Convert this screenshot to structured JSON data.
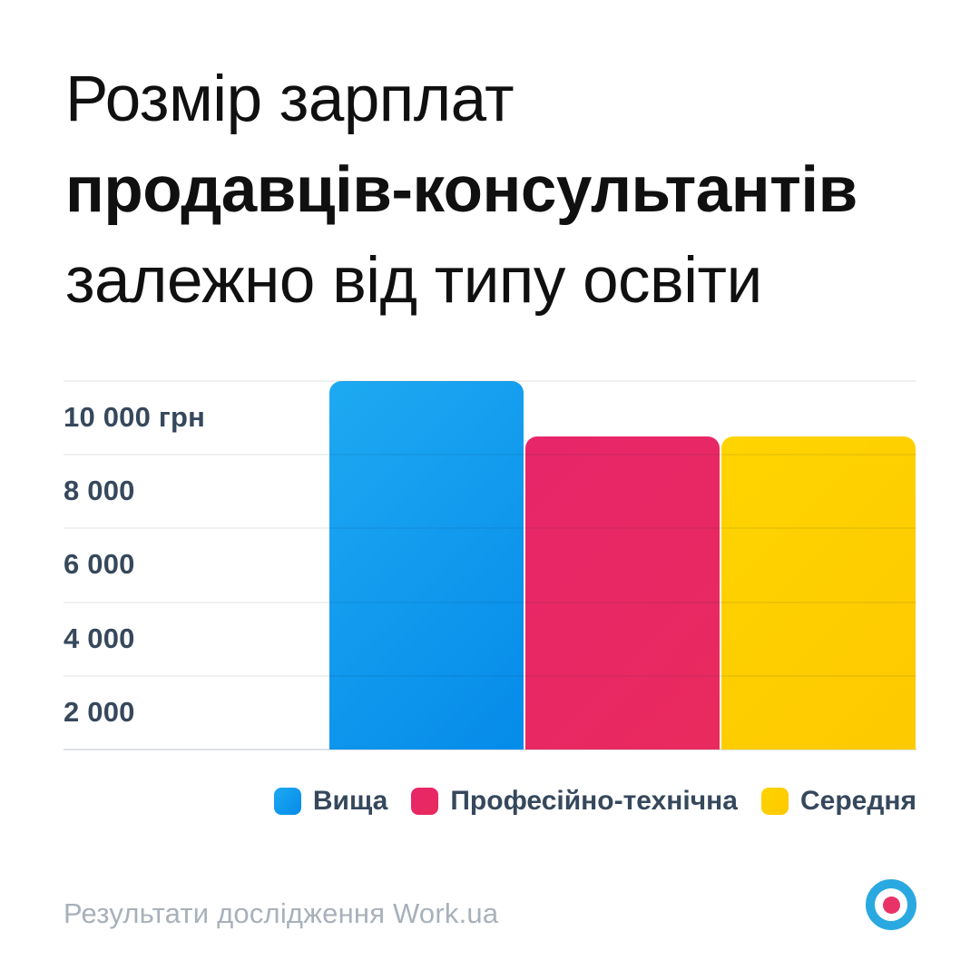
{
  "title": {
    "line1": "Розмір зарплат",
    "line2": "продавців-консультантів",
    "line3": "залежно від типу освіти"
  },
  "chart_data": {
    "type": "bar",
    "title": "Розмір зарплат продавців-консультантів залежно від типу освіти",
    "unit": "грн",
    "categories": [
      "Вища",
      "Професійно-технічна",
      "Середня"
    ],
    "values": [
      10000,
      8500,
      8500
    ],
    "series": [
      {
        "id": "vyshcha",
        "name": "Вища",
        "value": 10000,
        "color_from": "#1ea9f2",
        "color_to": "#058be9"
      },
      {
        "id": "proftech",
        "name": "Професійно-технічна",
        "value": 8500,
        "color_from": "#e7266a",
        "color_to": "#e92a5e"
      },
      {
        "id": "serednia",
        "name": "Середня",
        "value": 8500,
        "color_from": "#ffd400",
        "color_to": "#fdc900"
      }
    ],
    "ylim": [
      0,
      10000
    ],
    "yticks": [
      {
        "value": 10000,
        "label": "10 000 грн"
      },
      {
        "value": 8000,
        "label": "8 000"
      },
      {
        "value": 6000,
        "label": "6 000"
      },
      {
        "value": 4000,
        "label": "4 000"
      },
      {
        "value": 2000,
        "label": "2 000"
      },
      {
        "value": 0,
        "label": ""
      }
    ],
    "grid": true,
    "legend_position": "bottom-right",
    "colors": {
      "axis_text": "#36485c",
      "gridline": "#ececef",
      "title_text": "#101010",
      "footer_text": "#a8b1bb",
      "logo_ring": "#2aa9e1",
      "logo_dot": "#e93368"
    }
  },
  "footer": {
    "source": "Результати дослідження Work.ua"
  }
}
